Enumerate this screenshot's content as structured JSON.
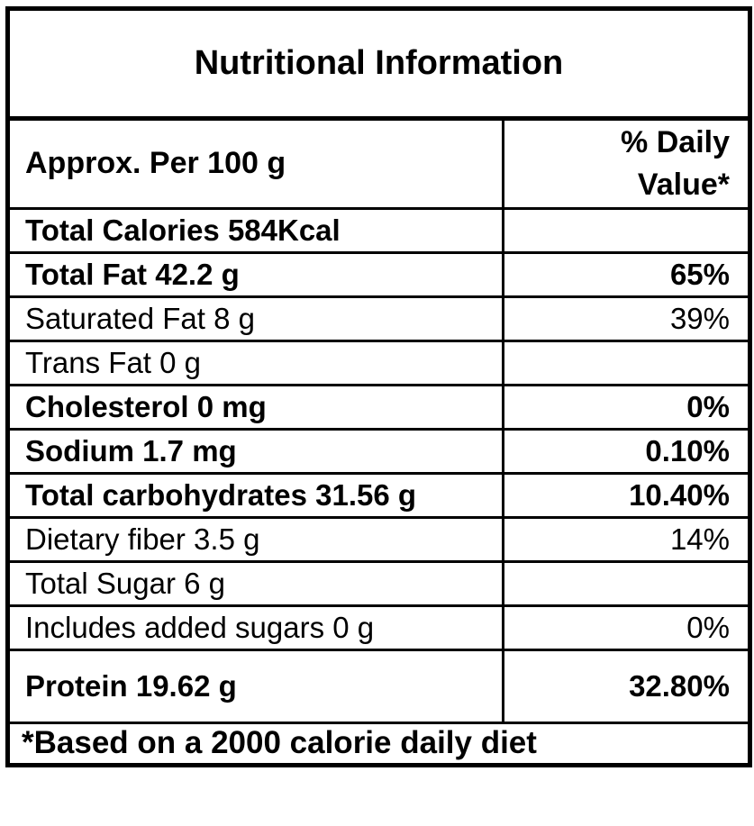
{
  "title": "Nutritional Information",
  "header": {
    "serving_label": "Approx. Per 100 g",
    "daily_value_label": "% Daily Value*"
  },
  "rows": [
    {
      "label": "Total Calories 584Kcal",
      "value": "",
      "bold": true,
      "tall": false
    },
    {
      "label": "Total Fat 42.2 g",
      "value": "65%",
      "bold": true,
      "tall": false
    },
    {
      "label": "Saturated Fat 8 g",
      "value": "39%",
      "bold": false,
      "tall": false
    },
    {
      "label": "Trans Fat 0 g",
      "value": "",
      "bold": false,
      "tall": false
    },
    {
      "label": "Cholesterol 0 mg",
      "value": "0%",
      "bold": true,
      "tall": false
    },
    {
      "label": "Sodium 1.7 mg",
      "value": "0.10%",
      "bold": true,
      "tall": false
    },
    {
      "label": "Total carbohydrates 31.56 g",
      "value": "10.40%",
      "bold": true,
      "tall": false
    },
    {
      "label": "Dietary fiber 3.5 g",
      "value": "14%",
      "bold": false,
      "tall": false
    },
    {
      "label": "Total Sugar 6 g",
      "value": "",
      "bold": false,
      "tall": false
    },
    {
      "label": "Includes added sugars 0 g",
      "value": "0%",
      "bold": false,
      "tall": false
    },
    {
      "label": "Protein 19.62 g",
      "value": "32.80%",
      "bold": true,
      "tall": true
    }
  ],
  "footer": "*Based on a 2000 calorie daily diet",
  "colors": {
    "border": "#000000",
    "text": "#000000",
    "background": "#ffffff"
  }
}
